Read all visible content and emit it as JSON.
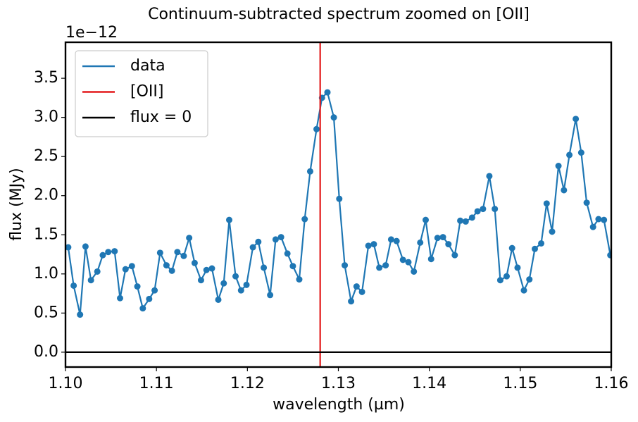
{
  "chart_data": {
    "type": "line",
    "title": "Continuum-subtracted spectrum zoomed on [OII]",
    "offset_text": "1e−12",
    "xlabel": "wavelength (µm)",
    "ylabel": "flux (MJy)",
    "x": [
      1.1003,
      1.1009,
      1.1016,
      1.1022,
      1.1028,
      1.1035,
      1.1041,
      1.1047,
      1.1054,
      1.106,
      1.1066,
      1.1073,
      1.1079,
      1.1085,
      1.1092,
      1.1098,
      1.1104,
      1.1111,
      1.1117,
      1.1123,
      1.113,
      1.1136,
      1.1142,
      1.1149,
      1.1155,
      1.1161,
      1.1168,
      1.1174,
      1.118,
      1.1187,
      1.1193,
      1.1199,
      1.1206,
      1.1212,
      1.1218,
      1.1225,
      1.1231,
      1.1237,
      1.1244,
      1.125,
      1.1257,
      1.1263,
      1.1269,
      1.1276,
      1.1282,
      1.1288,
      1.1295,
      1.1301,
      1.1307,
      1.1314,
      1.132,
      1.1326,
      1.1333,
      1.1339,
      1.1345,
      1.1352,
      1.1358,
      1.1364,
      1.1371,
      1.1377,
      1.1383,
      1.139,
      1.1396,
      1.1402,
      1.1409,
      1.1415,
      1.1421,
      1.1428,
      1.1434,
      1.144,
      1.1447,
      1.1453,
      1.1459,
      1.1466,
      1.1472,
      1.1478,
      1.1485,
      1.1491,
      1.1497,
      1.1504,
      1.151,
      1.1516,
      1.1523,
      1.1529,
      1.1535,
      1.1542,
      1.1548,
      1.1554,
      1.1561,
      1.1567,
      1.1573,
      1.158,
      1.1586,
      1.1592,
      1.1599
    ],
    "series": [
      {
        "name": "data",
        "color": "#1f77b4",
        "markers": true,
        "values": [
          1.34,
          0.85,
          0.48,
          1.35,
          0.92,
          1.03,
          1.24,
          1.28,
          1.29,
          0.69,
          1.06,
          1.1,
          0.84,
          0.56,
          0.68,
          0.79,
          1.27,
          1.11,
          1.04,
          1.28,
          1.23,
          1.46,
          1.14,
          0.92,
          1.05,
          1.07,
          0.67,
          0.88,
          1.69,
          0.97,
          0.79,
          0.86,
          1.34,
          1.41,
          1.08,
          0.73,
          1.44,
          1.47,
          1.26,
          1.1,
          0.93,
          1.7,
          2.31,
          2.85,
          3.25,
          3.32,
          3.0,
          1.96,
          1.11,
          0.65,
          0.84,
          0.77,
          1.36,
          1.38,
          1.08,
          1.11,
          1.44,
          1.42,
          1.18,
          1.15,
          1.03,
          1.4,
          1.69,
          1.19,
          1.46,
          1.47,
          1.38,
          1.24,
          1.68,
          1.67,
          1.72,
          1.8,
          1.83,
          2.25,
          1.83,
          0.92,
          0.97,
          1.33,
          1.08,
          0.79,
          0.93,
          1.32,
          1.39,
          1.9,
          1.54,
          2.38,
          2.07,
          2.52,
          2.98,
          2.55,
          1.91,
          1.6,
          1.7,
          1.69,
          1.24
        ]
      }
    ],
    "vlines": [
      {
        "name": "[OII]",
        "color": "#e31a1c",
        "x": 1.128
      }
    ],
    "hlines": [
      {
        "name": "flux = 0",
        "color": "#000000",
        "y": 0
      }
    ],
    "xlim": [
      1.1,
      1.16
    ],
    "ylim": [
      -0.19,
      3.96
    ],
    "xticks": [
      {
        "value": 1.1,
        "label": "1.10"
      },
      1.11,
      1.12,
      1.13,
      1.14,
      1.15,
      1.16
    ],
    "yticks": [
      {
        "value": 0,
        "label": "0.0"
      },
      0.5,
      {
        "value": 1,
        "label": "1.0"
      },
      1.5,
      {
        "value": 2,
        "label": "2.0"
      },
      2.5,
      {
        "value": 3,
        "label": "3.0"
      },
      3.5
    ],
    "grid": false,
    "legend": "upper left"
  }
}
